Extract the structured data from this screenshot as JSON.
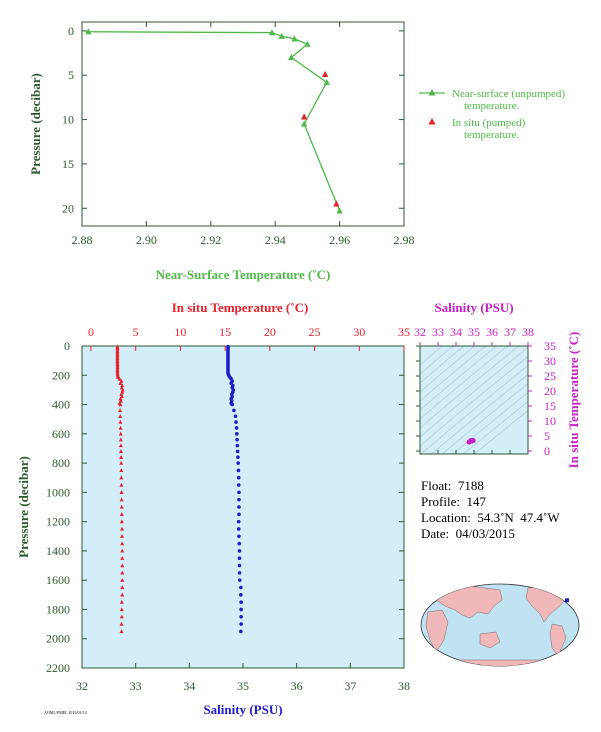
{
  "colors": {
    "green": "#4fb848",
    "red": "#e8202a",
    "blue": "#1d1dc9",
    "magenta": "#c81fc8",
    "dark_axis": "#2d5a2d",
    "panel_bg": "#d3eef8",
    "tsgrid": "#8a9aa8",
    "land": "#f0b8b8",
    "ocean": "#bfe3f3"
  },
  "chart_data": [
    {
      "id": "near-surface",
      "type": "line",
      "xlabel": "Near-Surface Temperature (˚C)",
      "ylabel": "Pressure (decibar)",
      "xlim": [
        2.88,
        2.98
      ],
      "ylim": [
        22,
        -1
      ],
      "xticks": [
        2.88,
        2.9,
        2.92,
        2.94,
        2.96,
        2.98
      ],
      "xtick_labels": [
        "2.88",
        "2.90",
        "2.92",
        "2.94",
        "2.96",
        "2.98"
      ],
      "yticks": [
        0,
        5,
        10,
        15,
        20
      ],
      "ytick_labels": [
        "0",
        "5",
        "10",
        "15",
        "20"
      ],
      "legend_position": "right",
      "series": [
        {
          "name": "Near-surface (unpumped) temperature.",
          "legend_lines": [
            "Near-surface (unpumped)",
            "temperature."
          ],
          "marker": "triangle",
          "x": [
            2.882,
            2.939,
            2.942,
            2.946,
            2.95,
            2.945,
            2.956,
            2.949,
            2.96
          ],
          "y": [
            0.1,
            0.2,
            0.6,
            0.9,
            1.5,
            3.0,
            5.8,
            10.5,
            20.3
          ]
        },
        {
          "name": "In situ (pumped) temperature.",
          "legend_lines": [
            "In situ (pumped)",
            "temperature."
          ],
          "marker": "triangle-points",
          "x": [
            2.9555,
            2.949,
            2.959
          ],
          "y": [
            4.9,
            9.7,
            19.5
          ]
        }
      ]
    },
    {
      "id": "profile",
      "type": "scatter",
      "xlabel_top": "In situ Temperature (˚C)",
      "xlabel_bottom": "Salinity (PSU)",
      "ylabel": "Pressure (decibar)",
      "top_xlim": [
        -1,
        35
      ],
      "top_xticks": [
        0,
        5,
        10,
        15,
        20,
        25,
        30,
        35
      ],
      "top_xtick_labels": [
        "0",
        "5",
        "10",
        "15",
        "20",
        "25",
        "30",
        "35"
      ],
      "bottom_xlim": [
        32,
        38
      ],
      "bottom_xticks": [
        32,
        33,
        34,
        35,
        36,
        37,
        38
      ],
      "bottom_xtick_labels": [
        "32",
        "33",
        "34",
        "35",
        "36",
        "37",
        "38"
      ],
      "ylim": [
        2200,
        0
      ],
      "yticks": [
        0,
        200,
        400,
        600,
        800,
        1000,
        1200,
        1400,
        1600,
        1800,
        2000,
        2200
      ],
      "ytick_labels": [
        "0",
        "200",
        "400",
        "600",
        "800",
        "1000",
        "1200",
        "1400",
        "1600",
        "1800",
        "2000",
        "2200"
      ],
      "temperature": {
        "pressure": [
          5,
          15,
          25,
          35,
          45,
          55,
          65,
          75,
          85,
          95,
          105,
          115,
          125,
          135,
          145,
          155,
          165,
          175,
          185,
          195,
          205,
          215,
          225,
          240,
          255,
          270,
          285,
          300,
          315,
          330,
          345,
          360,
          375,
          390,
          400,
          440,
          480,
          520,
          560,
          600,
          640,
          680,
          720,
          760,
          800,
          850,
          900,
          950,
          1000,
          1050,
          1100,
          1150,
          1200,
          1250,
          1300,
          1350,
          1400,
          1450,
          1500,
          1550,
          1600,
          1650,
          1700,
          1750,
          1800,
          1850,
          1900,
          1950
        ],
        "temp": [
          2.96,
          2.96,
          2.96,
          2.96,
          2.96,
          2.96,
          2.96,
          2.96,
          2.96,
          2.96,
          2.96,
          2.96,
          2.97,
          2.97,
          2.97,
          2.97,
          2.97,
          2.97,
          2.97,
          2.98,
          3.0,
          3.05,
          3.2,
          3.4,
          3.3,
          3.5,
          3.45,
          3.55,
          3.5,
          3.4,
          3.45,
          3.3,
          3.35,
          3.2,
          3.3,
          3.25,
          3.28,
          3.3,
          3.32,
          3.33,
          3.34,
          3.35,
          3.36,
          3.37,
          3.38,
          3.39,
          3.4,
          3.41,
          3.42,
          3.43,
          3.44,
          3.45,
          3.46,
          3.47,
          3.48,
          3.49,
          3.5,
          3.5,
          3.5,
          3.5,
          3.5,
          3.5,
          3.5,
          3.45,
          3.45,
          3.45,
          3.42,
          3.42
        ]
      },
      "salinity": {
        "pressure": [
          5,
          15,
          25,
          35,
          45,
          55,
          65,
          75,
          85,
          95,
          105,
          115,
          125,
          135,
          145,
          155,
          165,
          175,
          185,
          195,
          205,
          215,
          225,
          240,
          255,
          270,
          285,
          300,
          315,
          330,
          345,
          360,
          375,
          390,
          400,
          440,
          480,
          520,
          560,
          600,
          640,
          680,
          720,
          760,
          800,
          850,
          900,
          950,
          1000,
          1050,
          1100,
          1150,
          1200,
          1250,
          1300,
          1350,
          1400,
          1450,
          1500,
          1550,
          1600,
          1650,
          1700,
          1750,
          1800,
          1850,
          1900,
          1950
        ],
        "sal": [
          34.72,
          34.72,
          34.72,
          34.72,
          34.72,
          34.72,
          34.72,
          34.72,
          34.72,
          34.72,
          34.72,
          34.72,
          34.72,
          34.72,
          34.72,
          34.72,
          34.72,
          34.72,
          34.72,
          34.73,
          34.74,
          34.76,
          34.78,
          34.8,
          34.78,
          34.81,
          34.8,
          34.82,
          34.81,
          34.79,
          34.8,
          34.78,
          34.79,
          34.78,
          34.8,
          34.83,
          34.86,
          34.87,
          34.88,
          34.885,
          34.89,
          34.895,
          34.9,
          34.905,
          34.91,
          34.915,
          34.92,
          34.92,
          34.925,
          34.925,
          34.925,
          34.925,
          34.92,
          34.92,
          34.925,
          34.93,
          34.935,
          34.935,
          34.935,
          34.935,
          34.94,
          34.96,
          34.96,
          34.965,
          34.965,
          34.965,
          34.965,
          34.96
        ]
      }
    },
    {
      "id": "ts-diagram",
      "type": "scatter",
      "xlabel": "Salinity (PSU)",
      "ylabel": "In situ Temperature (˚C)",
      "xlim": [
        32,
        38
      ],
      "ylim": [
        -1,
        35
      ],
      "xticks": [
        32,
        33,
        34,
        35,
        36,
        37,
        38
      ],
      "xtick_labels": [
        "32",
        "33",
        "34",
        "35",
        "36",
        "37",
        "38"
      ],
      "yticks": [
        0,
        5,
        10,
        15,
        20,
        25,
        30,
        35
      ],
      "ytick_labels": [
        "0",
        "5",
        "10",
        "15",
        "20",
        "25",
        "30",
        "35"
      ],
      "points": [
        {
          "sal": 34.72,
          "temp": 2.96
        },
        {
          "sal": 34.78,
          "temp": 3.2
        },
        {
          "sal": 34.82,
          "temp": 3.5
        },
        {
          "sal": 34.8,
          "temp": 3.3
        },
        {
          "sal": 34.86,
          "temp": 3.3
        },
        {
          "sal": 34.9,
          "temp": 3.36
        },
        {
          "sal": 34.92,
          "temp": 3.42
        },
        {
          "sal": 34.935,
          "temp": 3.5
        },
        {
          "sal": 34.96,
          "temp": 3.45
        },
        {
          "sal": 34.75,
          "temp": 3.0
        },
        {
          "sal": 34.88,
          "temp": 3.32
        },
        {
          "sal": 34.94,
          "temp": 3.5
        }
      ]
    }
  ],
  "float_info": {
    "float": "Float:  7188",
    "profile": "Profile:  147",
    "location": "Location:  54.3˚N  47.4˚W",
    "date": "Date:  04/03/2015"
  },
  "map": {
    "marker_lon": -47.4,
    "marker_lat": 54.3
  },
  "footer_text": "AOML/PMEL 2015/01/14"
}
